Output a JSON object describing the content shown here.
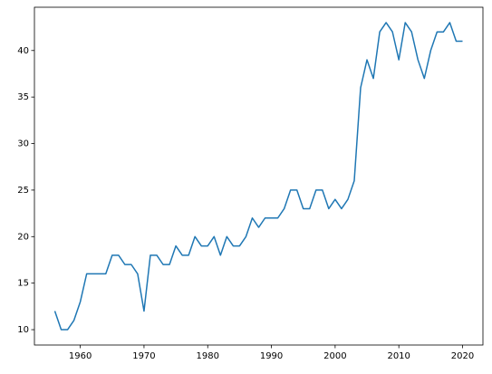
{
  "chart_data": {
    "type": "line",
    "x": [
      1956,
      1957,
      1958,
      1959,
      1960,
      1961,
      1962,
      1963,
      1964,
      1965,
      1966,
      1967,
      1968,
      1969,
      1970,
      1971,
      1972,
      1973,
      1974,
      1975,
      1976,
      1977,
      1978,
      1979,
      1980,
      1981,
      1982,
      1983,
      1984,
      1985,
      1986,
      1987,
      1988,
      1989,
      1990,
      1991,
      1992,
      1993,
      1994,
      1995,
      1996,
      1997,
      1998,
      1999,
      2000,
      2001,
      2002,
      2003,
      2004,
      2005,
      2006,
      2007,
      2008,
      2009,
      2010,
      2011,
      2012,
      2013,
      2014,
      2015,
      2016,
      2017,
      2018,
      2019,
      2020
    ],
    "values": [
      12,
      10,
      10,
      11,
      13,
      16,
      16,
      16,
      16,
      18,
      18,
      17,
      17,
      16,
      12,
      18,
      18,
      17,
      17,
      19,
      18,
      18,
      20,
      19,
      19,
      20,
      18,
      20,
      19,
      19,
      20,
      22,
      21,
      22,
      22,
      22,
      23,
      25,
      25,
      23,
      23,
      25,
      25,
      23,
      24,
      23,
      24,
      26,
      36,
      39,
      37,
      42,
      43,
      42,
      39,
      43,
      42,
      39,
      37,
      40,
      42,
      42,
      43,
      41,
      41
    ],
    "color": "#1f77b4",
    "xlim": [
      1952.8,
      2023.2
    ],
    "xticks": [
      1960,
      1970,
      1980,
      1990,
      2000,
      2010,
      2020
    ],
    "ylim": [
      8.35,
      44.65
    ],
    "yticks": [
      10,
      15,
      20,
      25,
      30,
      35,
      40
    ]
  }
}
